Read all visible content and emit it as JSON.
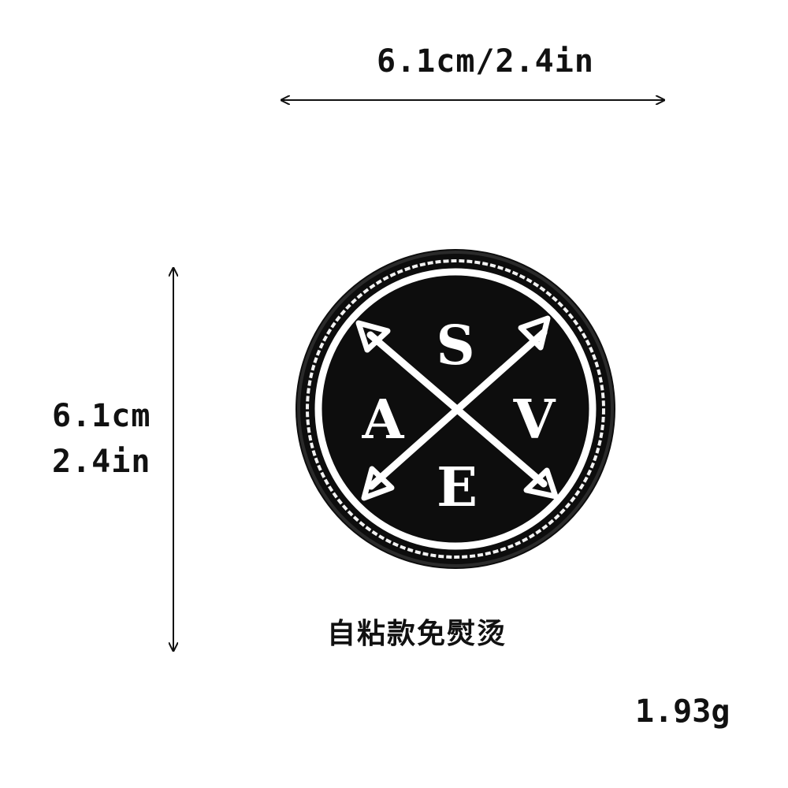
{
  "dimensions": {
    "width_label": "6.1cm/2.4in",
    "height_cm": "6.1cm",
    "height_in": "2.4in"
  },
  "patch": {
    "letters": {
      "top": "S",
      "left": "A",
      "right": "V",
      "bottom": "E"
    },
    "colors": {
      "background": "#0d0d0d",
      "stitch": "#ffffff"
    }
  },
  "caption": "自粘款免熨烫",
  "weight": "1.93g"
}
